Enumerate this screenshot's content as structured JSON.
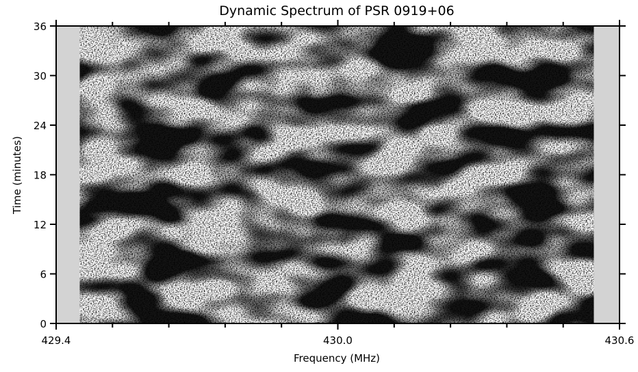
{
  "chart_data": {
    "type": "dynamic-spectrum",
    "title": "Dynamic Spectrum of PSR 0919+06",
    "x_label": "Frequency (MHz)",
    "y_label": "Time (minutes)",
    "xlim": [
      429.4,
      430.6
    ],
    "ylim": [
      0,
      36
    ],
    "xticks": [
      429.4,
      {
        "value": 430,
        "label": "430.0"
      },
      430.6
    ],
    "xminorticks": [
      429.52,
      429.64,
      429.76,
      429.88,
      430.12,
      430.24,
      430.36,
      430.48
    ],
    "yticks": [
      0,
      6,
      12,
      18,
      24,
      30,
      36
    ],
    "spectrum_xlim": [
      429.451,
      430.545
    ],
    "background_color": "#d3d3d3"
  }
}
